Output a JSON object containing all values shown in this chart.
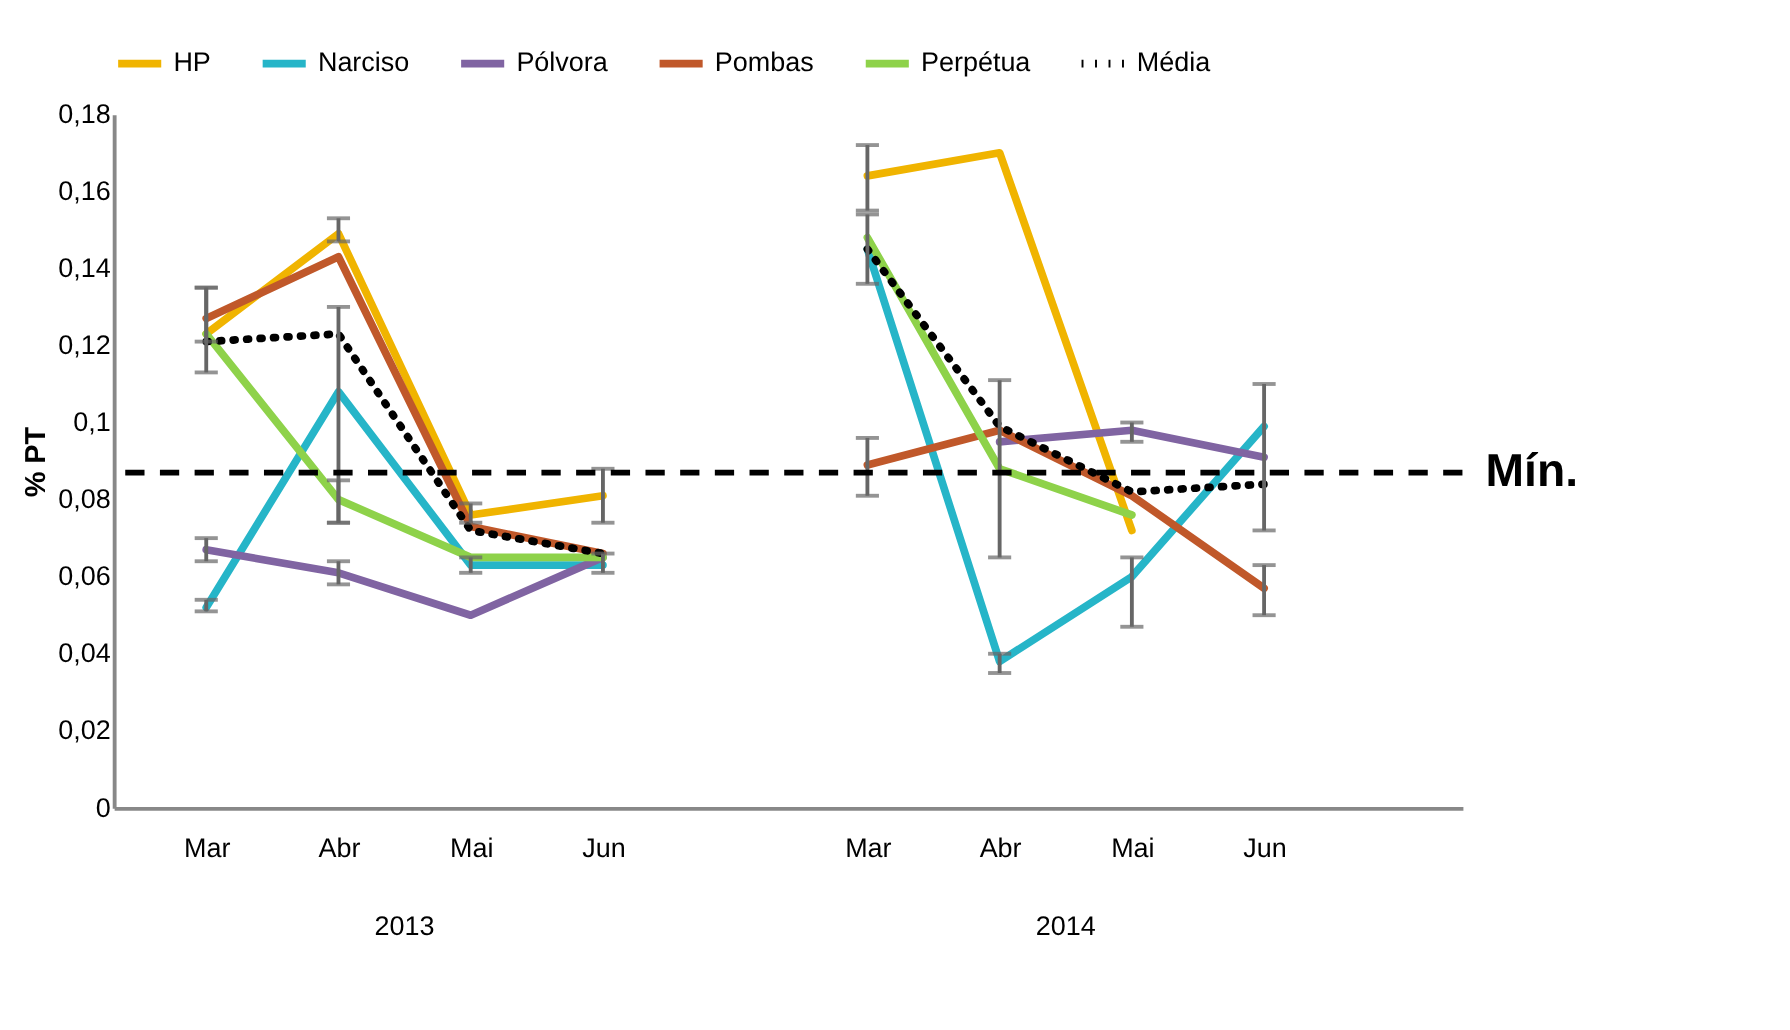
{
  "chart_data": {
    "type": "line",
    "ylabel": "% PT",
    "categories": [
      "Mar",
      "Abr",
      "Mai",
      "Jun",
      null,
      "Mar",
      "Abr",
      "Mai",
      "Jun"
    ],
    "annotations": [
      "2013",
      "2014"
    ],
    "series": [
      {
        "name": "HP",
        "color": "#f0b400",
        "line_style": "solid",
        "values": [
          0.123,
          0.149,
          0.076,
          0.081,
          null,
          0.164,
          0.17,
          0.072,
          null
        ],
        "errors": [
          [
            0.113,
            0.135
          ],
          [
            0.147,
            0.153
          ],
          [
            0.074,
            0.079
          ],
          [
            0.074,
            0.088
          ],
          null,
          [
            0.155,
            0.172
          ],
          null,
          null,
          null
        ]
      },
      {
        "name": "Narciso",
        "color": "#26b5c8",
        "line_style": "solid",
        "values": [
          0.052,
          0.108,
          0.063,
          0.063,
          null,
          0.145,
          0.038,
          0.06,
          0.099
        ],
        "errors": [
          [
            0.051,
            0.054
          ],
          [
            0.074,
            0.13
          ],
          [
            0.061,
            0.065
          ],
          [
            0.061,
            0.066
          ],
          null,
          null,
          [
            0.035,
            0.04
          ],
          [
            0.047,
            0.065
          ],
          null
        ]
      },
      {
        "name": "Pólvora",
        "color": "#8064a2",
        "line_style": "solid",
        "values": [
          0.067,
          0.061,
          0.05,
          0.065,
          null,
          null,
          0.095,
          0.098,
          0.091
        ],
        "errors": [
          [
            0.064,
            0.07
          ],
          [
            0.058,
            0.064
          ],
          null,
          null,
          null,
          null,
          null,
          [
            0.095,
            0.1
          ],
          [
            0.072,
            0.11
          ]
        ]
      },
      {
        "name": "Pombas",
        "color": "#c0582a",
        "line_style": "solid",
        "values": [
          0.127,
          0.143,
          0.073,
          0.066,
          null,
          0.089,
          0.098,
          0.081,
          0.057
        ],
        "errors": [
          [
            0.121,
            0.135
          ],
          null,
          null,
          null,
          null,
          [
            0.081,
            0.096
          ],
          null,
          null,
          [
            0.05,
            0.063
          ]
        ]
      },
      {
        "name": "Perpétua",
        "color": "#8ed24a",
        "line_style": "solid",
        "values": [
          0.123,
          0.08,
          0.065,
          0.065,
          null,
          0.148,
          0.088,
          0.076,
          null
        ],
        "errors": [
          null,
          [
            0.074,
            0.085
          ],
          null,
          null,
          null,
          [
            0.136,
            0.154
          ],
          [
            0.065,
            0.111
          ],
          null,
          null
        ]
      },
      {
        "name": "Média",
        "color": "#000000",
        "line_style": "dotted",
        "values": [
          0.121,
          0.123,
          0.072,
          0.066,
          null,
          0.145,
          0.099,
          0.082,
          0.084
        ]
      }
    ],
    "ylim": [
      0,
      0.18
    ],
    "yticks": [
      0,
      {
        "value": 0.02,
        "label": "0,02"
      },
      {
        "value": 0.04,
        "label": "0,04"
      },
      {
        "value": 0.06,
        "label": "0,06"
      },
      {
        "value": 0.08,
        "label": "0,08"
      },
      {
        "value": 0.1,
        "label": "0,1"
      },
      {
        "value": 0.12,
        "label": "0,12"
      },
      {
        "value": 0.14,
        "label": "0,14"
      },
      {
        "value": 0.16,
        "label": "0,16"
      },
      {
        "value": 0.18,
        "label": "0,18"
      }
    ],
    "ref_lines": [
      {
        "axis": "y",
        "value": 0.087,
        "label": "Mín.",
        "color": "#000000",
        "line_style": "dashed"
      }
    ],
    "grid": false,
    "legend": "top"
  }
}
